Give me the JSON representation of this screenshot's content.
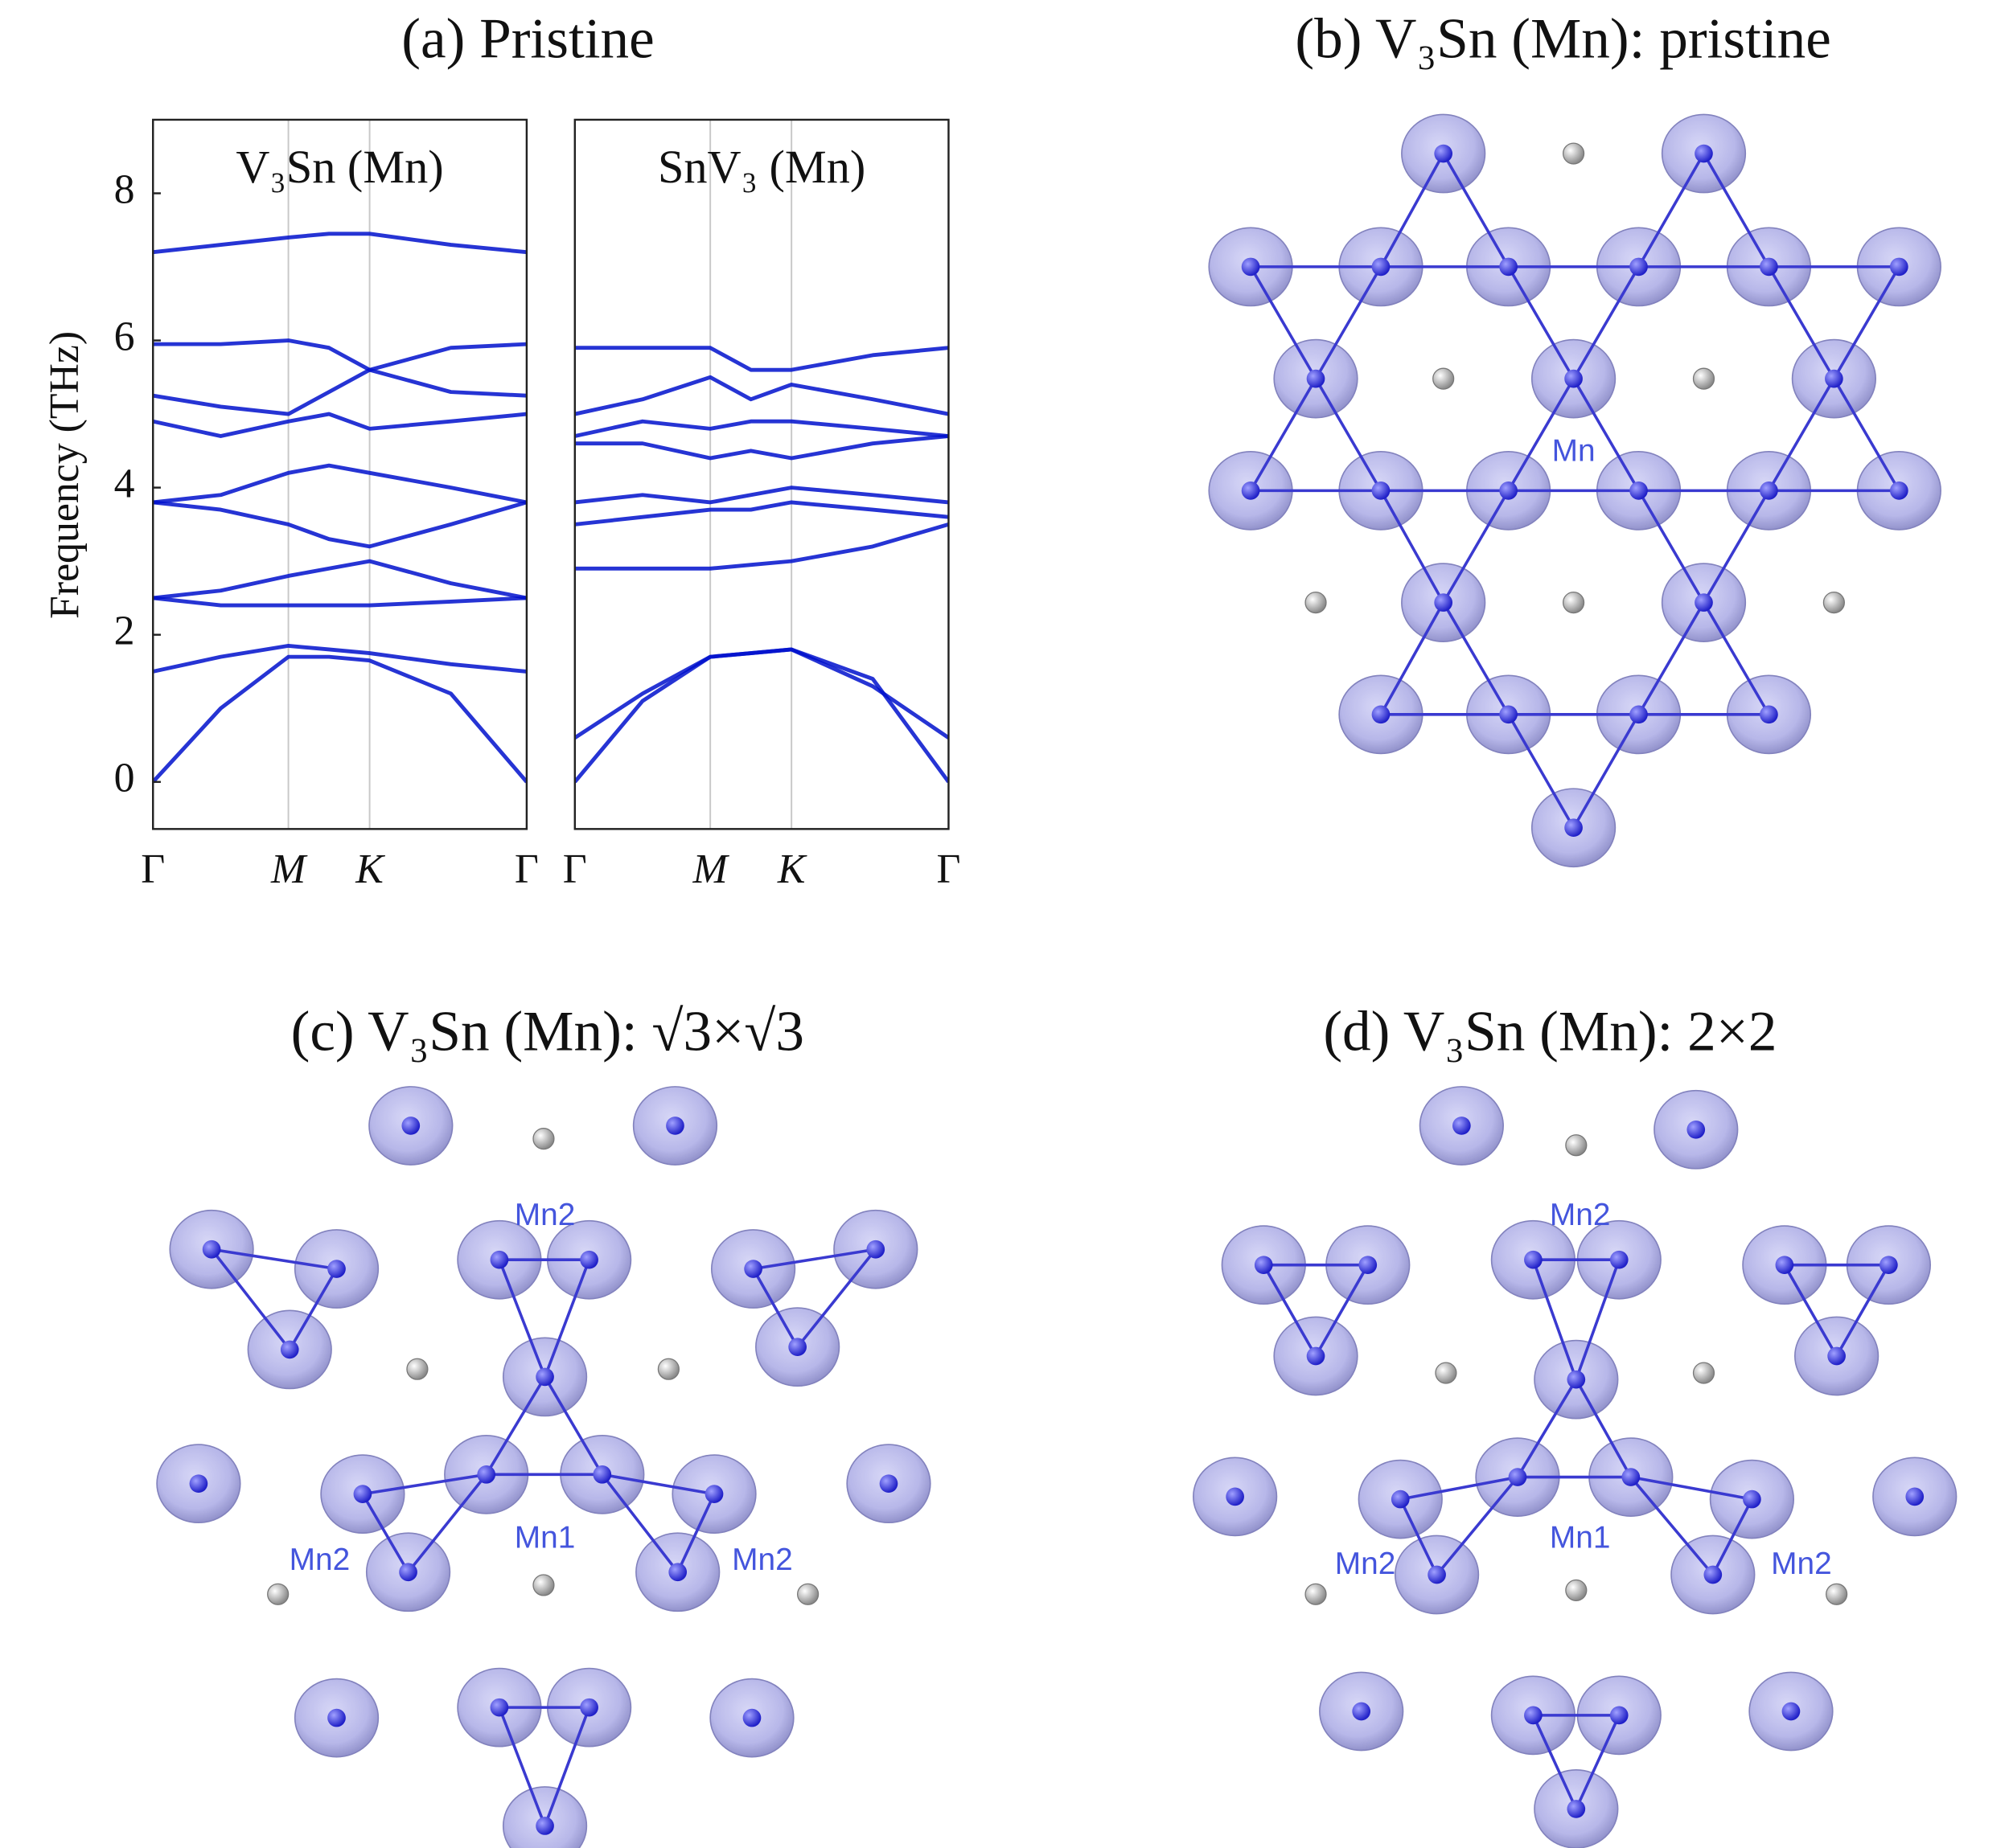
{
  "chart_data": [
    {
      "type": "line",
      "title": "(a) Pristine",
      "ylabel": "Frequency (THz)",
      "label": "V₃Sn (Mn)",
      "color": "#0010cc",
      "x": [
        0,
        0.5,
        1,
        1.3,
        1.6,
        2.2,
        2.76
      ],
      "xlim": [
        0,
        2.76
      ],
      "xticks": [
        {
          "value": 0,
          "label": "Γ"
        },
        {
          "value": 1,
          "label": "M"
        },
        {
          "value": 1.6,
          "label": "K"
        },
        {
          "value": 2.76,
          "label": "Γ"
        }
      ],
      "ylim": [
        -0.64,
        9
      ],
      "yticks": [
        0,
        2,
        4,
        6,
        8
      ],
      "grid": true,
      "series": [
        {
          "values": [
            0,
            1.0,
            1.7,
            1.7,
            1.65,
            1.2,
            0
          ]
        },
        {
          "values": [
            1.5,
            1.7,
            1.85,
            1.8,
            1.75,
            1.6,
            1.5
          ]
        },
        {
          "values": [
            2.5,
            2.4,
            2.4,
            2.4,
            2.4,
            2.45,
            2.5
          ]
        },
        {
          "values": [
            2.5,
            2.6,
            2.8,
            2.9,
            3.0,
            2.7,
            2.5
          ]
        },
        {
          "values": [
            3.8,
            3.7,
            3.5,
            3.3,
            3.2,
            3.5,
            3.8
          ]
        },
        {
          "values": [
            3.8,
            3.9,
            4.2,
            4.3,
            4.2,
            4.0,
            3.8
          ]
        },
        {
          "values": [
            4.9,
            4.7,
            4.9,
            5.0,
            4.8,
            4.9,
            5.0
          ]
        },
        {
          "values": [
            5.25,
            5.1,
            5.0,
            5.3,
            5.6,
            5.3,
            5.25
          ]
        },
        {
          "values": [
            5.95,
            5.95,
            6.0,
            5.9,
            5.6,
            5.9,
            5.95
          ]
        },
        {
          "values": [
            7.2,
            7.3,
            7.4,
            7.45,
            7.45,
            7.3,
            7.2
          ]
        }
      ]
    },
    {
      "type": "line",
      "label": "SnV₃ (Mn)",
      "color": "#0010cc",
      "x": [
        0,
        0.5,
        1,
        1.3,
        1.6,
        2.2,
        2.76
      ],
      "xlim": [
        0,
        2.76
      ],
      "xticks": [
        {
          "value": 0,
          "label": "Γ"
        },
        {
          "value": 1,
          "label": "M"
        },
        {
          "value": 1.6,
          "label": "K"
        },
        {
          "value": 2.76,
          "label": "Γ"
        }
      ],
      "ylim": [
        -0.64,
        9
      ],
      "grid": true,
      "series": [
        {
          "values": [
            0,
            1.1,
            1.7,
            1.75,
            1.8,
            1.3,
            0.6
          ]
        },
        {
          "values": [
            0.6,
            1.2,
            1.7,
            1.75,
            1.8,
            1.4,
            0
          ]
        },
        {
          "values": [
            2.9,
            2.9,
            2.9,
            2.95,
            3.0,
            3.2,
            3.5
          ]
        },
        {
          "values": [
            3.5,
            3.6,
            3.7,
            3.7,
            3.8,
            3.7,
            3.6
          ]
        },
        {
          "values": [
            3.8,
            3.9,
            3.8,
            3.9,
            4.0,
            3.9,
            3.8
          ]
        },
        {
          "values": [
            4.6,
            4.6,
            4.4,
            4.5,
            4.4,
            4.6,
            4.7
          ]
        },
        {
          "values": [
            4.7,
            4.9,
            4.8,
            4.9,
            4.9,
            4.8,
            4.7
          ]
        },
        {
          "values": [
            5.0,
            5.2,
            5.5,
            5.2,
            5.4,
            5.2,
            5.0
          ]
        },
        {
          "values": [
            5.9,
            5.9,
            5.9,
            5.6,
            5.6,
            5.8,
            5.9
          ]
        }
      ]
    }
  ],
  "panels": [
    {
      "title": "(b) V₃Sn (Mn): pristine",
      "labels": [
        "Mn"
      ]
    },
    {
      "title": "(c) V₃Sn (Mn): √3×√3",
      "labels": [
        "Mn2",
        "Mn1",
        "Mn2",
        "Mn2"
      ]
    },
    {
      "title": "(d) V₃Sn (Mn): 2×2",
      "labels": [
        "Mn2",
        "Mn1",
        "Mn2",
        "Mn2"
      ]
    }
  ]
}
